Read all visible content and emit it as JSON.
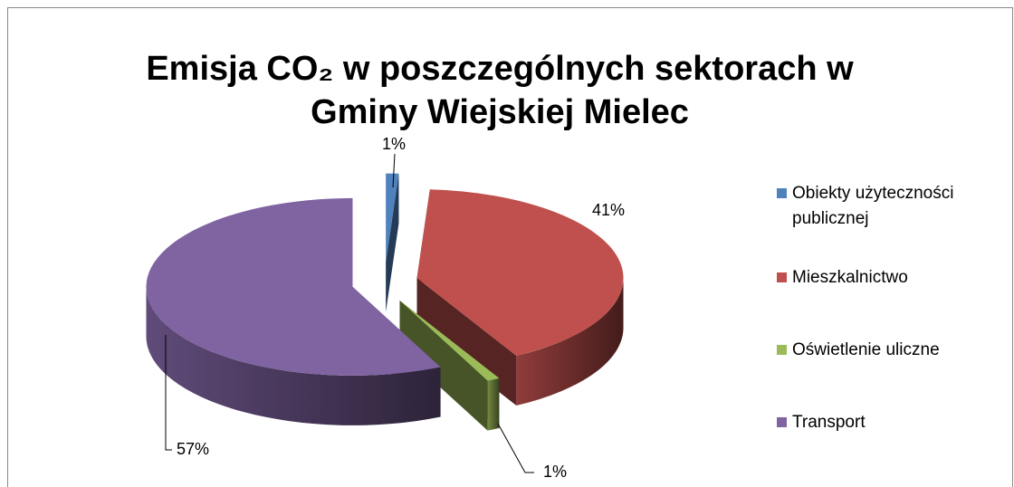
{
  "chart_data": {
    "type": "pie3d",
    "title": [
      "Emisja CO₂ w poszczególnych sektorach w",
      "Gminy Wiejskiej Mielec"
    ],
    "categories": [
      "Obiekty użyteczności publicznej",
      "Mieszkalnictwo",
      "Oświetlenie uliczne",
      "Transport"
    ],
    "values": [
      1,
      41,
      1,
      57
    ],
    "value_labels": [
      "1%",
      "41%",
      "1%",
      "57%"
    ],
    "colors": [
      "#4f81bd",
      "#c0504d",
      "#9bbb59",
      "#8064a2"
    ],
    "legend": "right"
  }
}
